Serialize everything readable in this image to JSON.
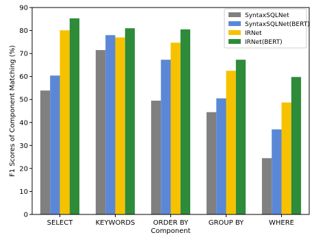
{
  "chart_data": {
    "type": "bar",
    "title": "",
    "xlabel": "Component",
    "ylabel": "F1 Scores of Component Matching (%)",
    "ylim": [
      0,
      90
    ],
    "yticks": [
      0,
      10,
      20,
      30,
      40,
      50,
      60,
      70,
      80,
      90
    ],
    "categories": [
      "SELECT",
      "KEYWORDS",
      "ORDER BY",
      "GROUP BY",
      "WHERE"
    ],
    "legend_position": "top-right",
    "grid": false,
    "series": [
      {
        "name": "SyntaxSQLNet",
        "color": "#808080",
        "values": [
          53.9,
          71.5,
          49.5,
          44.5,
          24.5
        ]
      },
      {
        "name": "SyntaxSQLNet(BERT)",
        "color": "#5b88d6",
        "values": [
          60.4,
          78.0,
          67.3,
          50.5,
          37.0
        ]
      },
      {
        "name": "IRNet",
        "color": "#f6c200",
        "values": [
          80.1,
          77.0,
          74.7,
          62.5,
          48.7
        ]
      },
      {
        "name": "IRNet(BERT)",
        "color": "#2e8b3a",
        "values": [
          85.3,
          81.0,
          80.5,
          67.3,
          59.8
        ]
      }
    ]
  }
}
